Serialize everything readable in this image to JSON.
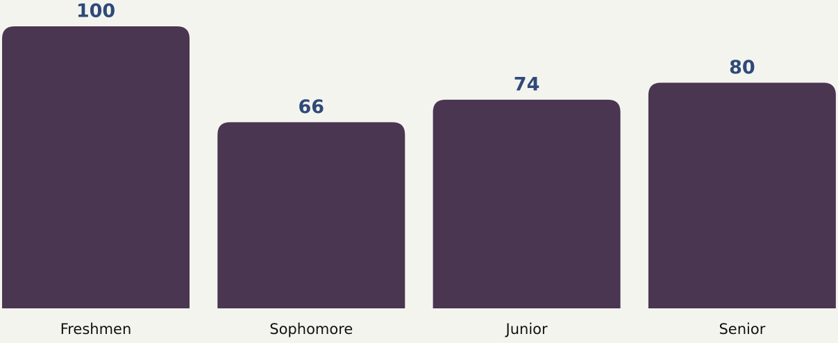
{
  "chart_data": {
    "type": "bar",
    "categories": [
      "Freshmen",
      "Sophomore",
      "Junior",
      "Senior"
    ],
    "values": [
      100,
      66,
      74,
      80
    ],
    "color": "#4a3650",
    "label_color": "#2f4a78"
  }
}
